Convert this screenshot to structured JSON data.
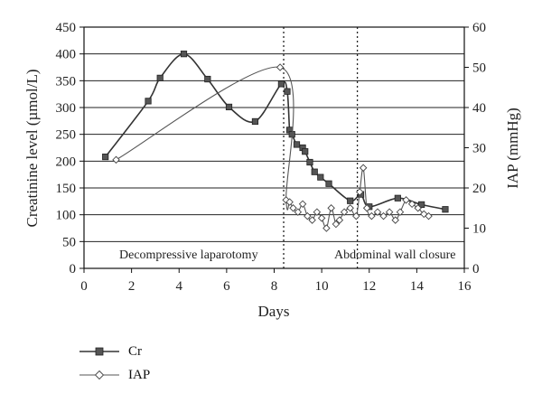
{
  "chart_data": {
    "type": "line",
    "xlabel": "Days",
    "ylabel_left": "Creatinine level (µmol/L)",
    "ylabel_right": "IAP (mmHg)",
    "xlim": [
      0,
      16
    ],
    "ylim_left": [
      0,
      450
    ],
    "ylim_right": [
      0,
      60
    ],
    "x_ticks": [
      "0",
      "2",
      "4",
      "6",
      "8",
      "10",
      "12",
      "14",
      "16"
    ],
    "y_left_ticks": [
      "0",
      "50",
      "100",
      "150",
      "200",
      "250",
      "300",
      "350",
      "400",
      "450"
    ],
    "y_right_ticks": [
      "0",
      "10",
      "20",
      "30",
      "40",
      "50",
      "60"
    ],
    "grid": "horizontal",
    "legend_position": "bottom-left",
    "annotations": [
      {
        "text": "Decompressive laparotomy",
        "x": 8.4
      },
      {
        "text": "Abdominal wall closure",
        "x": 11.5
      }
    ],
    "series": [
      {
        "name": "Cr",
        "axis": "left",
        "marker": "filled-square",
        "color": "#333333",
        "x": [
          0.9,
          2.7,
          3.2,
          4.2,
          5.2,
          6.1,
          7.2,
          8.3,
          8.55,
          8.65,
          8.75,
          8.95,
          9.2,
          9.3,
          9.5,
          9.7,
          9.95,
          10.3,
          11.2,
          11.65,
          12.0,
          13.2,
          14.2,
          15.2
        ],
        "y": [
          208,
          312,
          355,
          400,
          353,
          301,
          274,
          344,
          330,
          258,
          250,
          231,
          225,
          218,
          198,
          180,
          170,
          158,
          126,
          138,
          115,
          131,
          119,
          110
        ]
      },
      {
        "name": "IAP",
        "axis": "right",
        "marker": "open-diamond",
        "color": "#555555",
        "x": [
          1.35,
          8.25,
          8.5,
          8.65,
          8.8,
          9.0,
          9.2,
          9.4,
          9.6,
          9.8,
          10.0,
          10.2,
          10.4,
          10.6,
          10.75,
          10.95,
          11.2,
          11.45,
          11.6,
          11.75,
          11.9,
          12.1,
          12.35,
          12.6,
          12.85,
          13.1,
          13.3,
          13.55,
          13.8,
          14.05,
          14.3,
          14.5
        ],
        "y": [
          27,
          50,
          17,
          16.5,
          15,
          14,
          16,
          13,
          12,
          14,
          12.5,
          10,
          15,
          11,
          12,
          14,
          15,
          13,
          19,
          25,
          15,
          13,
          14,
          13,
          14,
          12,
          14,
          17,
          16,
          15,
          13.5,
          13
        ]
      }
    ]
  }
}
